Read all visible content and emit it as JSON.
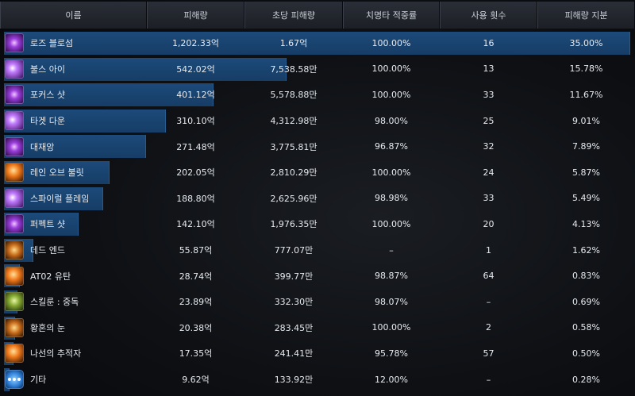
{
  "headers": [
    "이름",
    "피해량",
    "초당 피해량",
    "치명타 적중률",
    "사용 횟수",
    "피해량 지분"
  ],
  "rows": [
    {
      "name": "로즈 블로섬",
      "damage": "1,202.33억",
      "dps": "1.67억",
      "crit": "100.00%",
      "uses": "16",
      "share": "35.00%",
      "share_value": 35.0,
      "icon": "rose-blossom-icon",
      "tone": "purple"
    },
    {
      "name": "불스 아이",
      "damage": "542.02억",
      "dps": "7,538.58만",
      "crit": "100.00%",
      "uses": "13",
      "share": "15.78%",
      "share_value": 15.78,
      "icon": "bulls-eye-icon",
      "tone": "violet"
    },
    {
      "name": "포커스 샷",
      "damage": "401.12억",
      "dps": "5,578.88만",
      "crit": "100.00%",
      "uses": "33",
      "share": "11.67%",
      "share_value": 11.67,
      "icon": "focus-shot-icon",
      "tone": "purple"
    },
    {
      "name": "타겟 다운",
      "damage": "310.10억",
      "dps": "4,312.98만",
      "crit": "98.00%",
      "uses": "25",
      "share": "9.01%",
      "share_value": 9.01,
      "icon": "target-down-icon",
      "tone": "violet"
    },
    {
      "name": "대재앙",
      "damage": "271.48억",
      "dps": "3,775.81만",
      "crit": "96.87%",
      "uses": "32",
      "share": "7.89%",
      "share_value": 7.89,
      "icon": "catastrophe-icon",
      "tone": "purple"
    },
    {
      "name": "레인 오브 불릿",
      "damage": "202.05억",
      "dps": "2,810.29만",
      "crit": "100.00%",
      "uses": "24",
      "share": "5.87%",
      "share_value": 5.87,
      "icon": "rain-of-bullets-icon",
      "tone": "orange"
    },
    {
      "name": "스파이럴 플레임",
      "damage": "188.80억",
      "dps": "2,625.96만",
      "crit": "98.98%",
      "uses": "33",
      "share": "5.49%",
      "share_value": 5.49,
      "icon": "spiral-flame-icon",
      "tone": "violet"
    },
    {
      "name": "퍼펙트 샷",
      "damage": "142.10억",
      "dps": "1,976.35만",
      "crit": "100.00%",
      "uses": "20",
      "share": "4.13%",
      "share_value": 4.13,
      "icon": "perfect-shot-icon",
      "tone": "purple"
    },
    {
      "name": "데드 엔드",
      "damage": "55.87억",
      "dps": "777.07만",
      "crit": "–",
      "uses": "1",
      "share": "1.62%",
      "share_value": 1.62,
      "icon": "dead-end-icon",
      "tone": "gold"
    },
    {
      "name": "AT02 유탄",
      "damage": "28.74억",
      "dps": "399.77만",
      "crit": "98.87%",
      "uses": "64",
      "share": "0.83%",
      "share_value": 0.83,
      "icon": "at02-grenade-icon",
      "tone": "orange"
    },
    {
      "name": "스킬룬 : 중독",
      "damage": "23.89억",
      "dps": "332.30만",
      "crit": "98.07%",
      "uses": "–",
      "share": "0.69%",
      "share_value": 0.69,
      "icon": "skill-rune-poison-icon",
      "tone": "green"
    },
    {
      "name": "황혼의 눈",
      "damage": "20.38억",
      "dps": "283.45만",
      "crit": "100.00%",
      "uses": "2",
      "share": "0.58%",
      "share_value": 0.58,
      "icon": "twilight-eye-icon",
      "tone": "gold"
    },
    {
      "name": "나선의 추적자",
      "damage": "17.35억",
      "dps": "241.41만",
      "crit": "95.78%",
      "uses": "57",
      "share": "0.50%",
      "share_value": 0.5,
      "icon": "spiral-tracker-icon",
      "tone": "orange"
    },
    {
      "name": "기타",
      "damage": "9.62억",
      "dps": "133.92만",
      "crit": "12.00%",
      "uses": "–",
      "share": "0.28%",
      "share_value": 0.28,
      "icon": "more-dots-icon",
      "tone": "blue"
    }
  ]
}
